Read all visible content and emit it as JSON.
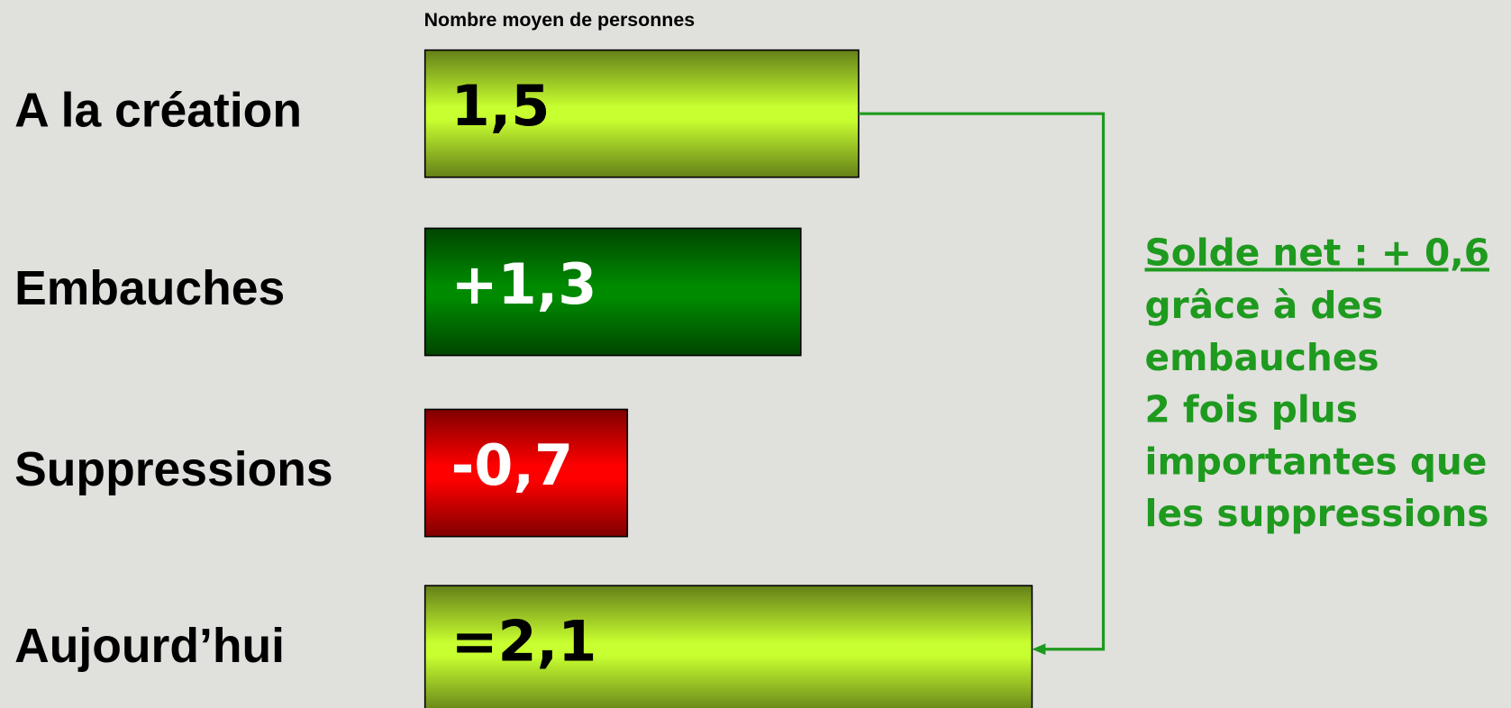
{
  "chart_data": {
    "type": "bar",
    "orientation": "horizontal",
    "subtitle": "Nombre moyen de personnes",
    "categories": [
      "A la création",
      "Embauches",
      "Suppressions",
      "Aujourd’hui"
    ],
    "values": [
      1.5,
      1.3,
      -0.7,
      2.1
    ],
    "value_labels": [
      "1,5",
      "+1,3",
      "-0,7",
      "=2,1"
    ],
    "colors": [
      "#c8ff30",
      "#008a00",
      "#ff0000",
      "#c8ff30"
    ],
    "value_label_colors": [
      "#000000",
      "#ffffff",
      "#ffffff",
      "#000000"
    ],
    "annotation": {
      "title": "Solde net : + 0,6",
      "lines": [
        "grâce à des",
        "embauches",
        "2 fois plus",
        "importantes que",
        "les suppressions"
      ],
      "color": "#1e9a1e"
    }
  }
}
